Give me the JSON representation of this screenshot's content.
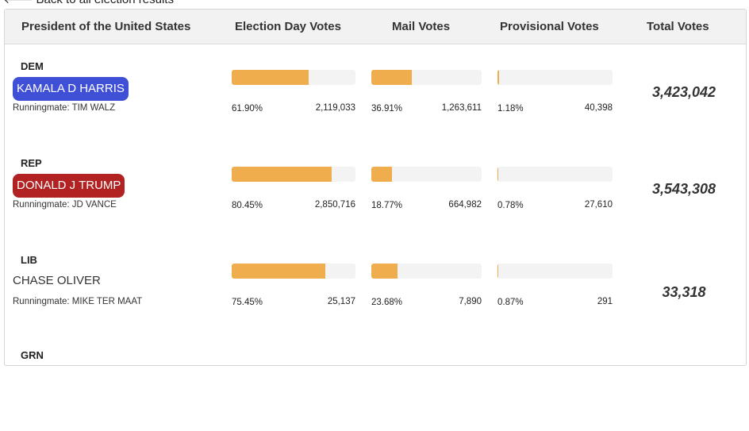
{
  "back_link": {
    "icon": "arrow-left-icon",
    "label": "Back to all election results"
  },
  "header": {
    "office": "President of the United States",
    "election_day": "Election Day Votes",
    "mail": "Mail Votes",
    "provisional": "Provisional Votes",
    "total": "Total Votes"
  },
  "candidates": [
    {
      "party": "DEM",
      "name": "KAMALA D HARRIS",
      "badge_color": "#3f4fd6",
      "runningmate": "Runningmate: TIM WALZ",
      "election_day": {
        "pct": "61.90%",
        "votes": "2,119,033",
        "fraction": 0.619
      },
      "mail": {
        "pct": "36.91%",
        "votes": "1,263,611",
        "fraction": 0.3691
      },
      "provisional": {
        "pct": "1.18%",
        "votes": "40,398",
        "fraction": 0.0118
      },
      "total": "3,423,042"
    },
    {
      "party": "REP",
      "name": "DONALD J TRUMP",
      "badge_color": "#b22222",
      "runningmate": "Runningmate: JD VANCE",
      "election_day": {
        "pct": "80.45%",
        "votes": "2,850,716",
        "fraction": 0.8045
      },
      "mail": {
        "pct": "18.77%",
        "votes": "664,982",
        "fraction": 0.1877
      },
      "provisional": {
        "pct": "0.78%",
        "votes": "27,610",
        "fraction": 0.0078
      },
      "total": "3,543,308"
    },
    {
      "party": "LIB",
      "name": "CHASE OLIVER",
      "badge_color": "",
      "runningmate": "Runningmate: MIKE TER MAAT",
      "election_day": {
        "pct": "75.45%",
        "votes": "25,137",
        "fraction": 0.7545
      },
      "mail": {
        "pct": "23.68%",
        "votes": "7,890",
        "fraction": 0.2368
      },
      "provisional": {
        "pct": "0.87%",
        "votes": "291",
        "fraction": 0.0087
      },
      "total": "33,318"
    },
    {
      "party": "GRN"
    }
  ]
}
